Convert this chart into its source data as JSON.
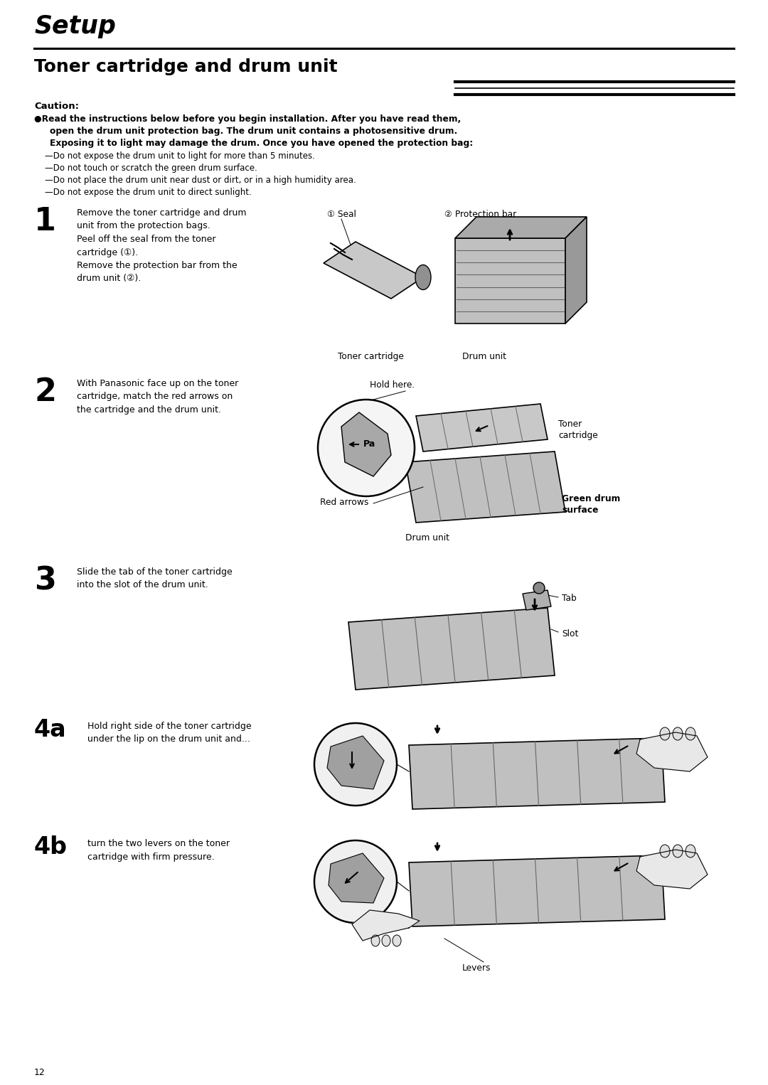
{
  "bg_color": "#ffffff",
  "text_color": "#000000",
  "title": "Setup",
  "section_title": "Toner cartridge and drum unit",
  "caution_label": "Caution:",
  "bullet1_line1": "●Read the instructions below before you begin installation. After you have read them,",
  "bullet1_line2": "open the drum unit protection bag. The drum unit contains a photosensitive drum.",
  "bullet1_line3": "Exposing it to light may damage the drum. Once you have opened the protection bag:",
  "caution_bullets": [
    "—Do not expose the drum unit to light for more than 5 minutes.",
    "—Do not touch or scratch the green drum surface.",
    "—Do not place the drum unit near dust or dirt, or in a high humidity area.",
    "—Do not expose the drum unit to direct sunlight."
  ],
  "step1_num": "1",
  "step1_text": "Remove the toner cartridge and drum\nunit from the protection bags.\nPeel off the seal from the toner\ncartridge (①).\nRemove the protection bar from the\ndrum unit (②).",
  "step1_lbl1": "① Seal",
  "step1_lbl2": "② Protection bar",
  "step1_lbl3": "Toner cartridge",
  "step1_lbl4": "Drum unit",
  "step2_num": "2",
  "step2_text": "With Panasonic face up on the toner\ncartridge, match the red arrows on\nthe cartridge and the drum unit.",
  "step2_lbl1": "Hold here.",
  "step2_lbl2": "Toner\ncartridge",
  "step2_lbl3": "Red arrows",
  "step2_lbl4": "Drum unit",
  "step2_lbl5": "Green drum\nsurface",
  "step3_num": "3",
  "step3_text": "Slide the tab of the toner cartridge\ninto the slot of the drum unit.",
  "step3_lbl1": "Tab",
  "step3_lbl2": "Slot",
  "step4a_num": "4a",
  "step4a_text": "Hold right side of the toner cartridge\nunder the lip on the drum unit and...",
  "step4b_num": "4b",
  "step4b_text": "turn the two levers on the toner\ncartridge with firm pressure.",
  "step4b_lbl1": "Levers",
  "page_number": "12",
  "gray_light": "#d0d0d0",
  "gray_mid": "#b0b0b0",
  "gray_dark": "#888888"
}
